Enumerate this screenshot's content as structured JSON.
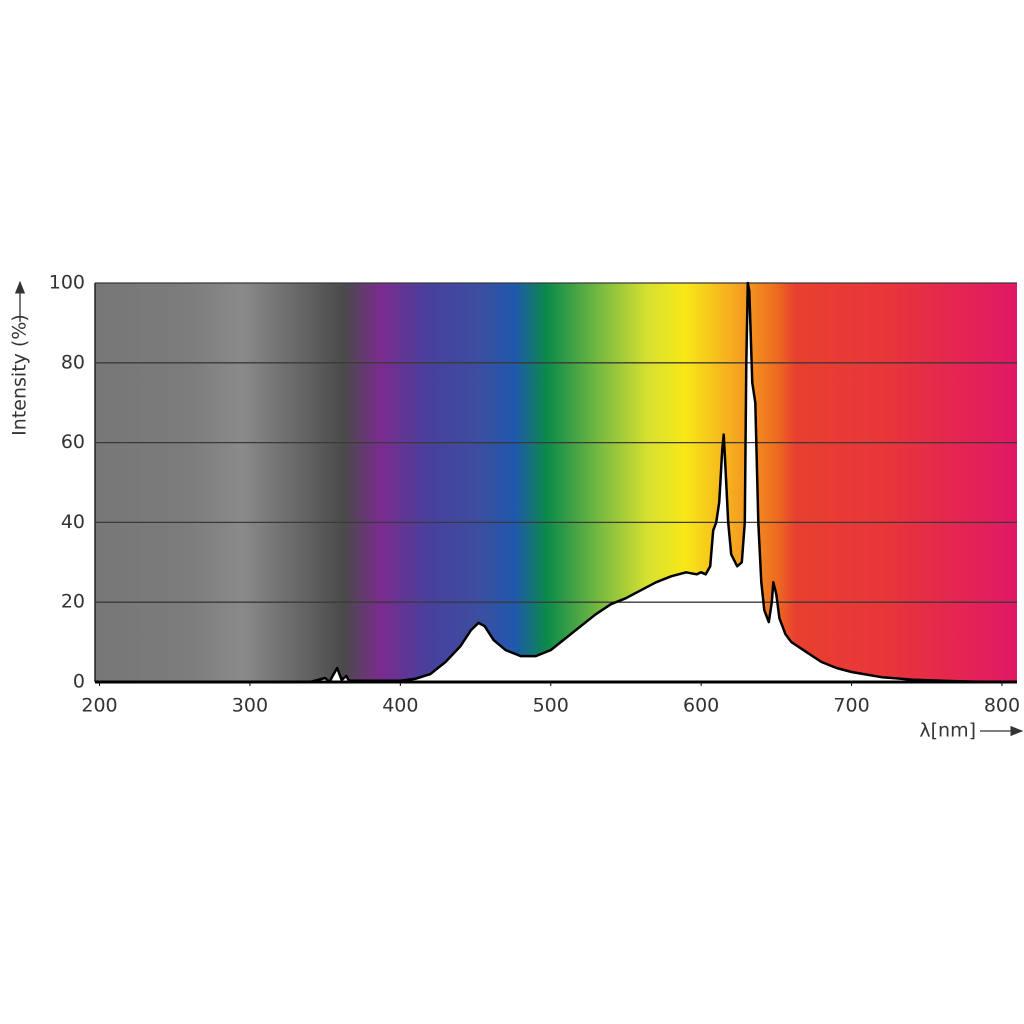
{
  "chart_data": {
    "type": "area",
    "xlabel": "λ[nm]",
    "ylabel": "Intensity (%)",
    "xlim": [
      197,
      810
    ],
    "ylim": [
      0,
      100
    ],
    "xticks": [
      200,
      300,
      400,
      500,
      600,
      700,
      800
    ],
    "yticks": [
      0,
      20,
      40,
      60,
      80,
      100
    ],
    "grid": true,
    "series": [
      {
        "color": "#000000",
        "x": [
          200,
          340,
          350,
          353,
          355,
          358,
          361,
          364,
          366,
          370,
          380,
          400,
          410,
          420,
          430,
          440,
          447,
          452,
          456,
          462,
          470,
          480,
          490,
          500,
          510,
          520,
          530,
          540,
          550,
          560,
          570,
          580,
          590,
          597,
          600,
          603,
          606,
          608,
          610,
          612,
          614,
          615,
          616,
          618,
          620,
          624,
          627,
          629,
          630,
          631,
          632,
          634,
          636,
          638,
          640,
          642,
          645,
          647,
          648,
          650,
          652,
          656,
          660,
          670,
          680,
          690,
          700,
          720,
          740,
          760,
          780,
          800,
          810
        ],
        "values": [
          0,
          0,
          1,
          0,
          1.5,
          3.5,
          0.5,
          1.5,
          0.3,
          0.3,
          0.3,
          0.3,
          0.8,
          2,
          5,
          9,
          13,
          14.8,
          14,
          10.5,
          8,
          6.5,
          6.5,
          8,
          11,
          14,
          17,
          19.5,
          21,
          23,
          25,
          26.5,
          27.5,
          27,
          27.5,
          27,
          29,
          38,
          40,
          45,
          58,
          62,
          55,
          40,
          32,
          29,
          30,
          40,
          80,
          100,
          98,
          75,
          70,
          40,
          25,
          18,
          15,
          20,
          25,
          22,
          16,
          12,
          10,
          7.5,
          5,
          3.5,
          2.5,
          1.2,
          0.6,
          0.3,
          0.1,
          0,
          0
        ]
      }
    ]
  }
}
